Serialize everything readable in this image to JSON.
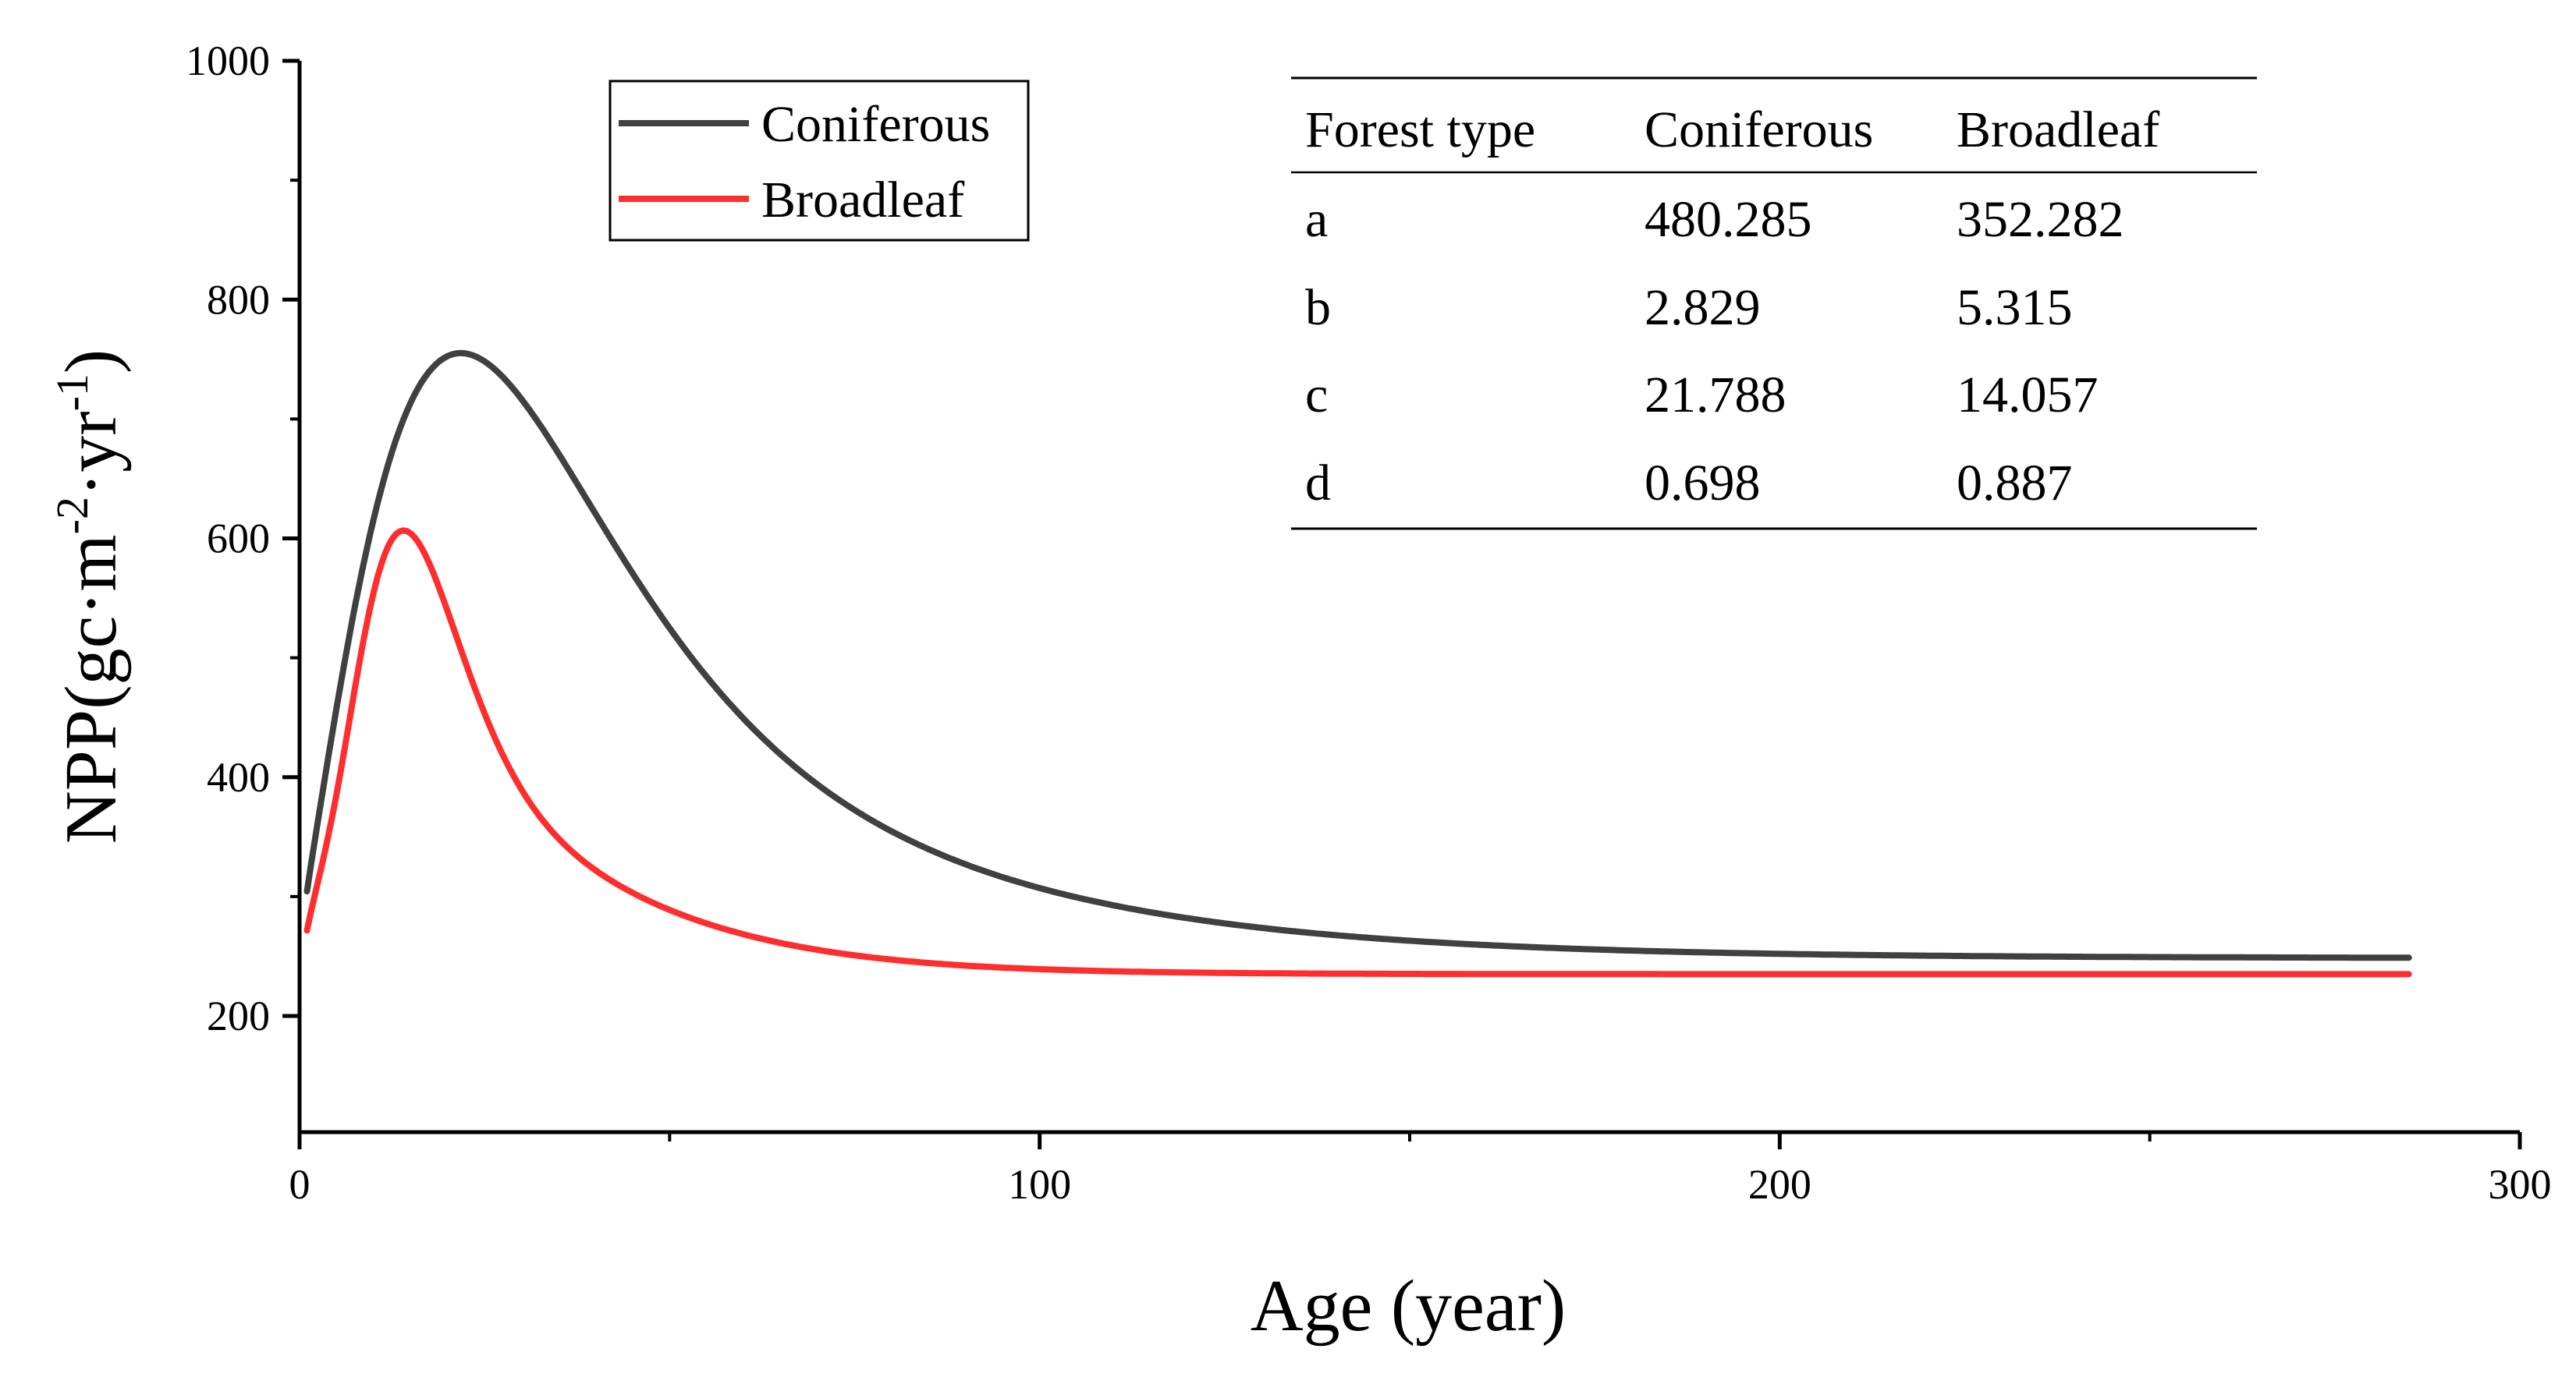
{
  "chart_data": {
    "type": "line",
    "title": "",
    "xlabel": "Age (year)",
    "ylabel_main": "NPP(gc·m",
    "ylabel_sup1": "-2",
    "ylabel_mid": "·yr",
    "ylabel_sup2": "-1",
    "ylabel_end": ")",
    "xlim": [
      0,
      300
    ],
    "ylim": [
      100,
      1000
    ],
    "xticks": [
      0,
      100,
      200,
      300
    ],
    "xminor": [
      50,
      150,
      250
    ],
    "yticks": [
      200,
      400,
      600,
      800,
      1000
    ],
    "yminor": [
      300,
      500,
      700,
      900
    ],
    "x_range": [
      1,
      285
    ],
    "legend_position": "top-left",
    "series": [
      {
        "name": "Coniferous",
        "color": "#404040",
        "a": 480.285,
        "b": 2.829,
        "c": 21.788,
        "d": 0.698,
        "baseline": 300.5
      },
      {
        "name": "Broadleaf",
        "color": "#ff2e2e",
        "a": 352.282,
        "b": 5.315,
        "c": 14.057,
        "d": 0.887,
        "baseline": 287.0
      }
    ],
    "table": {
      "headers": [
        "Forest type",
        "Coniferous",
        "Broadleaf"
      ],
      "rows": [
        [
          "a",
          "480.285",
          "352.282"
        ],
        [
          "b",
          "2.829",
          "5.315"
        ],
        [
          "c",
          "21.788",
          "14.057"
        ],
        [
          "d",
          "0.698",
          "0.887"
        ]
      ]
    }
  }
}
